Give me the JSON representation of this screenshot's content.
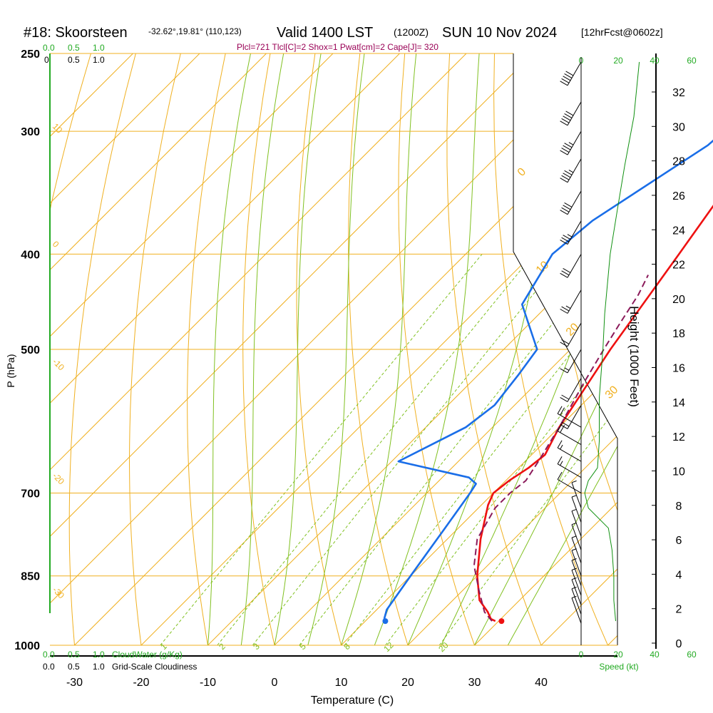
{
  "header": {
    "station": "#18: Skoorsteen",
    "coords": "-32.62°,19.81° (110,123)",
    "valid": "Valid 1400 LST",
    "z": "(1200Z)",
    "date": "SUN 10 Nov 2024",
    "fcst": "[12hrFcst@0602z]"
  },
  "subheader": "Plcl=721 Tlcl[C]=2 Shox=1 Pwat[cm]=2 Cape[J]= 320",
  "colors": {
    "isotherm": "#f0b020",
    "dry_adiabat": "#f0b020",
    "moist_adiabat": "#80c020",
    "mixing_ratio": "#80c020",
    "temperature": "#ee1111",
    "dewpoint": "#1a6ee8",
    "parcel": "#8b1a5a",
    "speed": "#109010",
    "cloud_scale": "#22aa22",
    "subheader": "#990055"
  },
  "chart_data": {
    "type": "line",
    "title": "#18: Skoorsteen  Valid 1400 LST (1200Z) SUN 10 Nov 2024",
    "xlabel": "Temperature (C)",
    "ylabel": "P (hPa)",
    "y2label": "Height (1000 Feet)",
    "xlim": [
      -34,
      46
    ],
    "ylim": [
      1000,
      250
    ],
    "x_ticks": [
      "-30",
      "-20",
      "-10",
      "0",
      "10",
      "20",
      "30",
      "40"
    ],
    "p_ticks": [
      "250",
      "300",
      "400",
      "500",
      "700",
      "850",
      "1000"
    ],
    "height_ticks": [
      "0",
      "2",
      "4",
      "6",
      "8",
      "10",
      "12",
      "14",
      "16",
      "18",
      "20",
      "22",
      "24",
      "26",
      "28",
      "30",
      "32"
    ],
    "top_scale_a": [
      "0.0",
      "0.5",
      "1.0"
    ],
    "top_scale_b": [
      "0",
      "0.5",
      "1.0"
    ],
    "bottom_scale_a": [
      "0.0",
      "0.5",
      "1.0"
    ],
    "bottom_scale_b": [
      "0.0",
      "0.5",
      "1.0"
    ],
    "cloudwater_label": "CloudWater (g/Kg)",
    "cloudiness_label": "Grid-Scale Cloudiness",
    "speed_ticks": [
      "0",
      "20",
      "40",
      "60"
    ],
    "speed_label": "Speed (kt)",
    "isotherm_labels": [
      "0",
      "10",
      "20",
      "30"
    ],
    "dry_adiabat_labels": [
      "10",
      "0",
      "-10",
      "-20",
      "-30"
    ],
    "mixing_ratio_labels": [
      "1",
      "2",
      "3",
      "5",
      "8",
      "12",
      "20"
    ],
    "series": [
      {
        "name": "Temperature",
        "points": [
          [
            29.5,
            945
          ],
          [
            28.5,
            940
          ],
          [
            27,
            925
          ],
          [
            24,
            900
          ],
          [
            20,
            850
          ],
          [
            15,
            780
          ],
          [
            11,
            720
          ],
          [
            10,
            700
          ],
          [
            10.5,
            680
          ],
          [
            11.5,
            660
          ],
          [
            12,
            640
          ],
          [
            10,
            600
          ],
          [
            6,
            500
          ],
          [
            2,
            400
          ],
          [
            -1,
            340
          ],
          [
            -4,
            300
          ],
          [
            -7,
            270
          ],
          [
            -8,
            250
          ]
        ]
      },
      {
        "name": "Dewpoint",
        "points": [
          [
            12.5,
            940
          ],
          [
            11.5,
            920
          ],
          [
            10,
            850
          ],
          [
            8,
            760
          ],
          [
            6.5,
            700
          ],
          [
            6,
            685
          ],
          [
            4,
            675
          ],
          [
            -9,
            650
          ],
          [
            -4,
            600
          ],
          [
            -3,
            570
          ],
          [
            -4,
            530
          ],
          [
            -5,
            500
          ],
          [
            -14,
            450
          ],
          [
            -17,
            400
          ],
          [
            -16,
            370
          ],
          [
            -10,
            310
          ],
          [
            -9,
            280
          ],
          [
            -10,
            250
          ]
        ]
      },
      {
        "name": "Parcel",
        "points": [
          [
            29,
            945
          ],
          [
            26.5,
            925
          ],
          [
            22.5,
            880
          ],
          [
            18,
            830
          ],
          [
            14.5,
            780
          ],
          [
            12.5,
            725
          ],
          [
            12.5,
            700
          ],
          [
            13,
            680
          ],
          [
            12,
            650
          ],
          [
            10,
            600
          ],
          [
            7,
            540
          ],
          [
            5,
            500
          ],
          [
            3.5,
            470
          ],
          [
            2,
            440
          ],
          [
            0.5,
            420
          ]
        ]
      }
    ],
    "surface_temperature": 30,
    "surface_dewpoint": 13,
    "surface_pressure": 945,
    "height_profile_kft": [
      [
        0,
        999
      ],
      [
        2,
        945
      ],
      [
        4,
        880
      ],
      [
        6,
        815
      ],
      [
        8,
        755
      ],
      [
        10,
        700
      ],
      [
        12,
        640
      ],
      [
        14,
        595
      ],
      [
        16,
        555
      ],
      [
        18,
        513
      ],
      [
        20,
        470
      ],
      [
        22,
        430
      ],
      [
        24,
        395
      ],
      [
        26,
        360
      ],
      [
        28,
        328
      ],
      [
        30,
        300
      ],
      [
        32,
        275
      ]
    ],
    "wind_speed_profile": [
      [
        19,
        945
      ],
      [
        18,
        900
      ],
      [
        18,
        850
      ],
      [
        17,
        800
      ],
      [
        15,
        760
      ],
      [
        4,
        725
      ],
      [
        2,
        700
      ],
      [
        4,
        680
      ],
      [
        9,
        660
      ],
      [
        10,
        620
      ],
      [
        10,
        560
      ],
      [
        12,
        500
      ],
      [
        13,
        460
      ],
      [
        16,
        400
      ],
      [
        20,
        360
      ],
      [
        24,
        325
      ],
      [
        29,
        290
      ],
      [
        32,
        255
      ]
    ],
    "wind_barbs": [
      {
        "p": 950,
        "kt": 5
      },
      {
        "p": 930,
        "kt": 5
      },
      {
        "p": 910,
        "kt": 5
      },
      {
        "p": 890,
        "kt": 5
      },
      {
        "p": 870,
        "kt": 5
      },
      {
        "p": 850,
        "kt": 5
      },
      {
        "p": 825,
        "kt": 5
      },
      {
        "p": 800,
        "kt": 5
      },
      {
        "p": 775,
        "kt": 5
      },
      {
        "p": 750,
        "kt": 5
      },
      {
        "p": 725,
        "kt": 5
      },
      {
        "p": 700,
        "kt": 10
      },
      {
        "p": 675,
        "kt": 15
      },
      {
        "p": 650,
        "kt": 15
      },
      {
        "p": 625,
        "kt": 20
      },
      {
        "p": 600,
        "kt": 20
      },
      {
        "p": 570,
        "kt": 20
      },
      {
        "p": 535,
        "kt": 20
      },
      {
        "p": 500,
        "kt": 15
      },
      {
        "p": 470,
        "kt": 20
      },
      {
        "p": 435,
        "kt": 25
      },
      {
        "p": 400,
        "kt": 30
      },
      {
        "p": 370,
        "kt": 35
      },
      {
        "p": 345,
        "kt": 40
      },
      {
        "p": 320,
        "kt": 45
      },
      {
        "p": 300,
        "kt": 45
      },
      {
        "p": 280,
        "kt": 50
      },
      {
        "p": 255,
        "kt": 50
      }
    ]
  }
}
